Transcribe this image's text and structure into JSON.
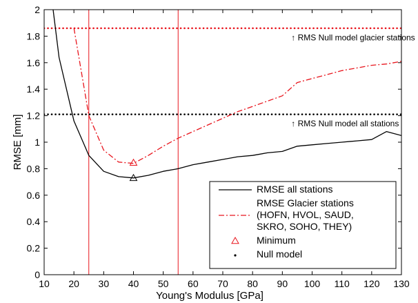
{
  "chart_data": {
    "type": "line",
    "title": "",
    "xlabel": "Young's Modulus [GPa]",
    "ylabel": "RMSE [mm]",
    "xlim": [
      10,
      130
    ],
    "ylim": [
      0,
      2
    ],
    "xticks": [
      10,
      20,
      30,
      40,
      50,
      60,
      70,
      80,
      90,
      100,
      110,
      120,
      130
    ],
    "yticks": [
      0,
      0.2,
      0.4,
      0.6,
      0.8,
      1,
      1.2,
      1.4,
      1.6,
      1.8,
      2
    ],
    "grid": false,
    "legend_position": "bottom-right",
    "series": [
      {
        "name": "RMSE all stations",
        "color": "#000000",
        "style": "solid",
        "x": [
          13,
          15,
          20,
          25,
          30,
          35,
          40,
          45,
          50,
          55,
          60,
          65,
          70,
          75,
          80,
          85,
          90,
          95,
          100,
          105,
          110,
          115,
          120,
          125,
          130
        ],
        "y": [
          2.0,
          1.64,
          1.16,
          0.9,
          0.78,
          0.74,
          0.73,
          0.75,
          0.78,
          0.8,
          0.83,
          0.85,
          0.87,
          0.89,
          0.9,
          0.92,
          0.93,
          0.97,
          0.98,
          0.99,
          1.0,
          1.01,
          1.02,
          1.08,
          1.05
        ]
      },
      {
        "name": "RMSE Glacier stations",
        "name_lines": [
          "RMSE Glacier stations",
          "(HOFN, HVOL, SAUD,",
          "SKRO, SOHO, THEY)"
        ],
        "color": "#e8141c",
        "style": "dashdot",
        "x": [
          20,
          25,
          30,
          35,
          40,
          45,
          50,
          55,
          60,
          65,
          70,
          75,
          80,
          85,
          90,
          95,
          100,
          105,
          110,
          115,
          120,
          125,
          130
        ],
        "y": [
          1.86,
          1.2,
          0.94,
          0.85,
          0.84,
          0.9,
          0.97,
          1.03,
          1.08,
          1.13,
          1.18,
          1.23,
          1.27,
          1.31,
          1.35,
          1.45,
          1.48,
          1.51,
          1.54,
          1.56,
          1.58,
          1.59,
          1.61
        ]
      }
    ],
    "minima": [
      {
        "series": "RMSE all stations",
        "x": 40,
        "y": 0.73,
        "color": "#000000"
      },
      {
        "series": "RMSE Glacier stations",
        "x": 40,
        "y": 0.845,
        "color": "#e8141c"
      }
    ],
    "null_models": [
      {
        "y": 1.86,
        "color": "#e8141c",
        "label": "↑ RMS Null model glacier stations",
        "label_x": 93,
        "label_y": 1.79
      },
      {
        "y": 1.21,
        "color": "#000000",
        "label": "↑ RMS Null model all stations",
        "label_x": 93,
        "label_y": 1.14
      }
    ],
    "vertical_lines": [
      {
        "x": 25,
        "color": "#e8141c"
      },
      {
        "x": 55,
        "color": "#e8141c"
      }
    ],
    "legend": [
      {
        "label_lines": [
          "RMSE all stations"
        ],
        "kind": "line",
        "color": "#000000",
        "style": "solid"
      },
      {
        "label_lines": [
          "RMSE Glacier stations",
          "(HOFN, HVOL, SAUD,",
          "SKRO, SOHO, THEY)"
        ],
        "kind": "line",
        "color": "#e8141c",
        "style": "dashdot"
      },
      {
        "label_lines": [
          "Minimum"
        ],
        "kind": "triangle",
        "color": "#e8141c"
      },
      {
        "label_lines": [
          "Null model"
        ],
        "kind": "dot",
        "color": "#000000"
      }
    ]
  }
}
